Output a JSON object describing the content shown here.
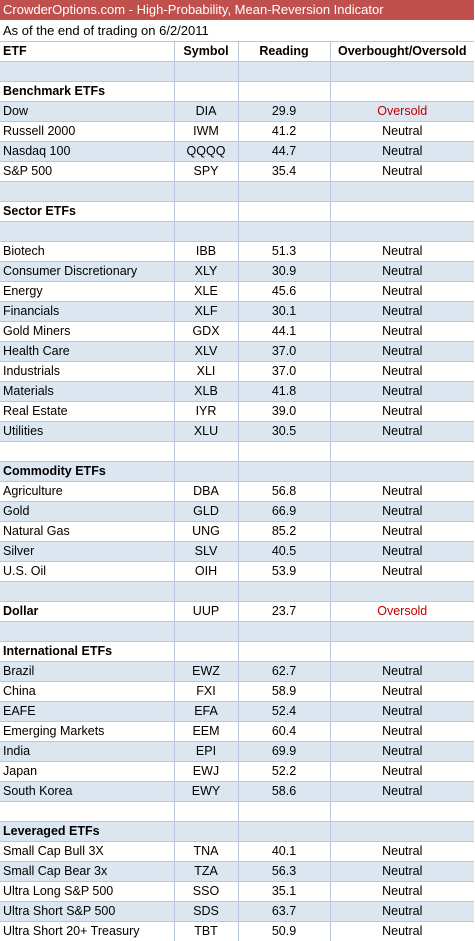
{
  "title": "CrowderOptions.com - High-Probability, Mean-Reversion Indicator",
  "subtitle": "As of the end of trading on 6/2/2011",
  "colors": {
    "header_bg": "#c0504d",
    "band_bg": "#dce6f1",
    "oversold": "#c00000"
  },
  "columns": [
    "ETF",
    "Symbol",
    "Reading",
    "Overbought/Oversold"
  ],
  "sections": [
    {
      "title": "Benchmark ETFs",
      "blank_before": true,
      "blank_after": false,
      "rows": [
        {
          "etf": "Dow",
          "symbol": "DIA",
          "reading": "29.9",
          "status": "Oversold"
        },
        {
          "etf": "Russell 2000",
          "symbol": "IWM",
          "reading": "41.2",
          "status": "Neutral"
        },
        {
          "etf": "Nasdaq 100",
          "symbol": "QQQQ",
          "reading": "44.7",
          "status": "Neutral"
        },
        {
          "etf": "S&P 500",
          "symbol": "SPY",
          "reading": "35.4",
          "status": "Neutral"
        }
      ]
    },
    {
      "title": "Sector ETFs",
      "blank_before": true,
      "blank_after": true,
      "rows": [
        {
          "etf": "Biotech",
          "symbol": "IBB",
          "reading": "51.3",
          "status": "Neutral"
        },
        {
          "etf": "Consumer Discretionary",
          "symbol": "XLY",
          "reading": "30.9",
          "status": "Neutral"
        },
        {
          "etf": "Energy",
          "symbol": "XLE",
          "reading": "45.6",
          "status": "Neutral"
        },
        {
          "etf": "Financials",
          "symbol": "XLF",
          "reading": "30.1",
          "status": "Neutral"
        },
        {
          "etf": "Gold Miners",
          "symbol": "GDX",
          "reading": "44.1",
          "status": "Neutral"
        },
        {
          "etf": "Health Care",
          "symbol": "XLV",
          "reading": "37.0",
          "status": "Neutral"
        },
        {
          "etf": "Industrials",
          "symbol": "XLI",
          "reading": "37.0",
          "status": "Neutral"
        },
        {
          "etf": "Materials",
          "symbol": "XLB",
          "reading": "41.8",
          "status": "Neutral"
        },
        {
          "etf": "Real Estate",
          "symbol": "IYR",
          "reading": "39.0",
          "status": "Neutral"
        },
        {
          "etf": "Utilities",
          "symbol": "XLU",
          "reading": "30.5",
          "status": "Neutral"
        }
      ]
    },
    {
      "title": "Commodity ETFs",
      "blank_before": true,
      "blank_after": false,
      "rows": [
        {
          "etf": "Agriculture",
          "symbol": "DBA",
          "reading": "56.8",
          "status": "Neutral"
        },
        {
          "etf": "Gold",
          "symbol": "GLD",
          "reading": "66.9",
          "status": "Neutral"
        },
        {
          "etf": "Natural Gas",
          "symbol": "UNG",
          "reading": "85.2",
          "status": "Neutral"
        },
        {
          "etf": "Silver",
          "symbol": "SLV",
          "reading": "40.5",
          "status": "Neutral"
        },
        {
          "etf": "U.S. Oil",
          "symbol": "OIH",
          "reading": "53.9",
          "status": "Neutral"
        }
      ]
    },
    {
      "title": "Dollar",
      "blank_before": true,
      "blank_after": false,
      "inline": true,
      "symbol": "UUP",
      "reading": "23.7",
      "status": "Oversold",
      "rows": []
    },
    {
      "title": "International ETFs",
      "blank_before": true,
      "blank_after": false,
      "rows": [
        {
          "etf": "Brazil",
          "symbol": "EWZ",
          "reading": "62.7",
          "status": "Neutral"
        },
        {
          "etf": "China",
          "symbol": "FXI",
          "reading": "58.9",
          "status": "Neutral"
        },
        {
          "etf": "EAFE",
          "symbol": "EFA",
          "reading": "52.4",
          "status": "Neutral"
        },
        {
          "etf": "Emerging Markets",
          "symbol": "EEM",
          "reading": "60.4",
          "status": "Neutral"
        },
        {
          "etf": "India",
          "symbol": "EPI",
          "reading": "69.9",
          "status": "Neutral"
        },
        {
          "etf": "Japan",
          "symbol": "EWJ",
          "reading": "52.2",
          "status": "Neutral"
        },
        {
          "etf": "South Korea",
          "symbol": "EWY",
          "reading": "58.6",
          "status": "Neutral"
        }
      ]
    },
    {
      "title": "Leveraged ETFs",
      "blank_before": true,
      "blank_after": false,
      "rows": [
        {
          "etf": "Small Cap Bull 3X",
          "symbol": "TNA",
          "reading": "40.1",
          "status": "Neutral"
        },
        {
          "etf": "Small Cap Bear 3x",
          "symbol": "TZA",
          "reading": "56.3",
          "status": "Neutral"
        },
        {
          "etf": "Ultra Long S&P 500",
          "symbol": "SSO",
          "reading": "35.1",
          "status": "Neutral"
        },
        {
          "etf": "Ultra Short S&P 500",
          "symbol": "SDS",
          "reading": "63.7",
          "status": "Neutral"
        },
        {
          "etf": "Ultra Short 20+ Treasury",
          "symbol": "TBT",
          "reading": "50.9",
          "status": "Neutral"
        }
      ]
    }
  ]
}
